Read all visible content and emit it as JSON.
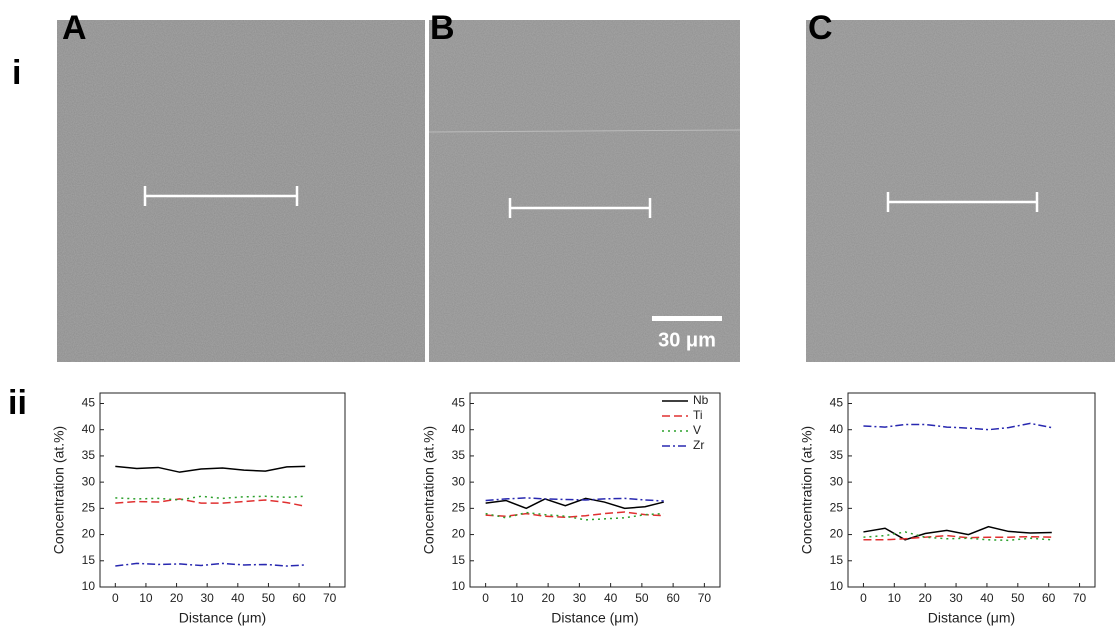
{
  "panels": {
    "columns": [
      "A",
      "B",
      "C"
    ],
    "rows": [
      "i",
      "ii"
    ],
    "scale_bar": "30 μm"
  },
  "chart_data": [
    {
      "type": "line",
      "x_label": "Distance (μm)",
      "y_label": "Concentration (at.%)",
      "xlim": [
        -5,
        75
      ],
      "xticks": [
        0,
        10,
        20,
        30,
        40,
        50,
        60,
        70
      ],
      "ylim": [
        10,
        47
      ],
      "yticks": [
        10,
        15,
        20,
        25,
        30,
        35,
        40,
        45
      ],
      "x": [
        0,
        7,
        14,
        21,
        28,
        35,
        42,
        49,
        56,
        62
      ],
      "series": [
        {
          "color": "#000000",
          "dash": "solid",
          "values": [
            33,
            32.6,
            32.8,
            31.9,
            32.5,
            32.7,
            32.3,
            32.1,
            32.9,
            33
          ]
        },
        {
          "color": "#e03030",
          "dash": "dashed",
          "values": [
            26,
            26.3,
            26.2,
            26.8,
            26,
            26,
            26.3,
            26.6,
            26.1,
            25.4
          ]
        },
        {
          "color": "#2ca02c",
          "dash": "dotted",
          "values": [
            27,
            26.8,
            26.9,
            26.6,
            27.3,
            26.9,
            27.2,
            27.3,
            27.1,
            27.3
          ]
        },
        {
          "color": "#2828b0",
          "dash": "dashdot",
          "values": [
            14,
            14.5,
            14.3,
            14.4,
            14.1,
            14.5,
            14.2,
            14.3,
            14,
            14.2
          ]
        }
      ]
    },
    {
      "type": "line",
      "x_label": "Distance (μm)",
      "y_label": "Concentration (at.%)",
      "xlim": [
        -5,
        75
      ],
      "xticks": [
        0,
        10,
        20,
        30,
        40,
        50,
        60,
        70
      ],
      "ylim": [
        10,
        47
      ],
      "yticks": [
        10,
        15,
        20,
        25,
        30,
        35,
        40,
        45
      ],
      "legend": "upper right",
      "x": [
        0,
        6.5,
        13,
        19,
        25.5,
        32,
        38,
        44.5,
        51,
        57
      ],
      "series": [
        {
          "name": "Nb",
          "color": "#000000",
          "dash": "solid",
          "values": [
            26,
            26.5,
            25,
            26.8,
            25.5,
            26.9,
            26.2,
            25,
            25.3,
            26.2
          ]
        },
        {
          "name": "Ti",
          "color": "#e03030",
          "dash": "dashed",
          "values": [
            23.7,
            23.5,
            24,
            23.5,
            23.3,
            23.6,
            24,
            24.3,
            23.8,
            23.6
          ]
        },
        {
          "name": "V",
          "color": "#2ca02c",
          "dash": "dotted",
          "values": [
            24,
            23.2,
            24.2,
            23.8,
            23.5,
            22.8,
            23,
            23.2,
            23.8,
            24
          ]
        },
        {
          "name": "Zr",
          "color": "#2828b0",
          "dash": "dashdot",
          "values": [
            26.5,
            26.8,
            27,
            26.8,
            26.7,
            26.6,
            26.8,
            26.9,
            26.6,
            26.4
          ]
        }
      ]
    },
    {
      "type": "line",
      "x_label": "Distance (μm)",
      "y_label": "Concentration (at.%)",
      "xlim": [
        -5,
        75
      ],
      "xticks": [
        0,
        10,
        20,
        30,
        40,
        50,
        60,
        70
      ],
      "ylim": [
        10,
        47
      ],
      "yticks": [
        10,
        15,
        20,
        25,
        30,
        35,
        40,
        45
      ],
      "x": [
        0,
        7,
        13.5,
        20,
        27,
        34,
        40.5,
        47,
        54,
        61
      ],
      "series": [
        {
          "color": "#000000",
          "dash": "solid",
          "values": [
            20.5,
            21.2,
            19,
            20.2,
            20.8,
            20,
            21.5,
            20.6,
            20.3,
            20.4
          ]
        },
        {
          "color": "#e03030",
          "dash": "dashed",
          "values": [
            19,
            19,
            19.2,
            19.5,
            19.8,
            19.4,
            19.5,
            19.5,
            19.6,
            19.5
          ]
        },
        {
          "color": "#2ca02c",
          "dash": "dotted",
          "values": [
            19.5,
            19.8,
            20.5,
            19.5,
            19.2,
            19.3,
            19,
            18.9,
            19.3,
            19
          ]
        },
        {
          "color": "#2828b0",
          "dash": "dashdot",
          "values": [
            40.7,
            40.5,
            41,
            41,
            40.5,
            40.3,
            40,
            40.4,
            41.2,
            40.4
          ]
        }
      ]
    }
  ]
}
